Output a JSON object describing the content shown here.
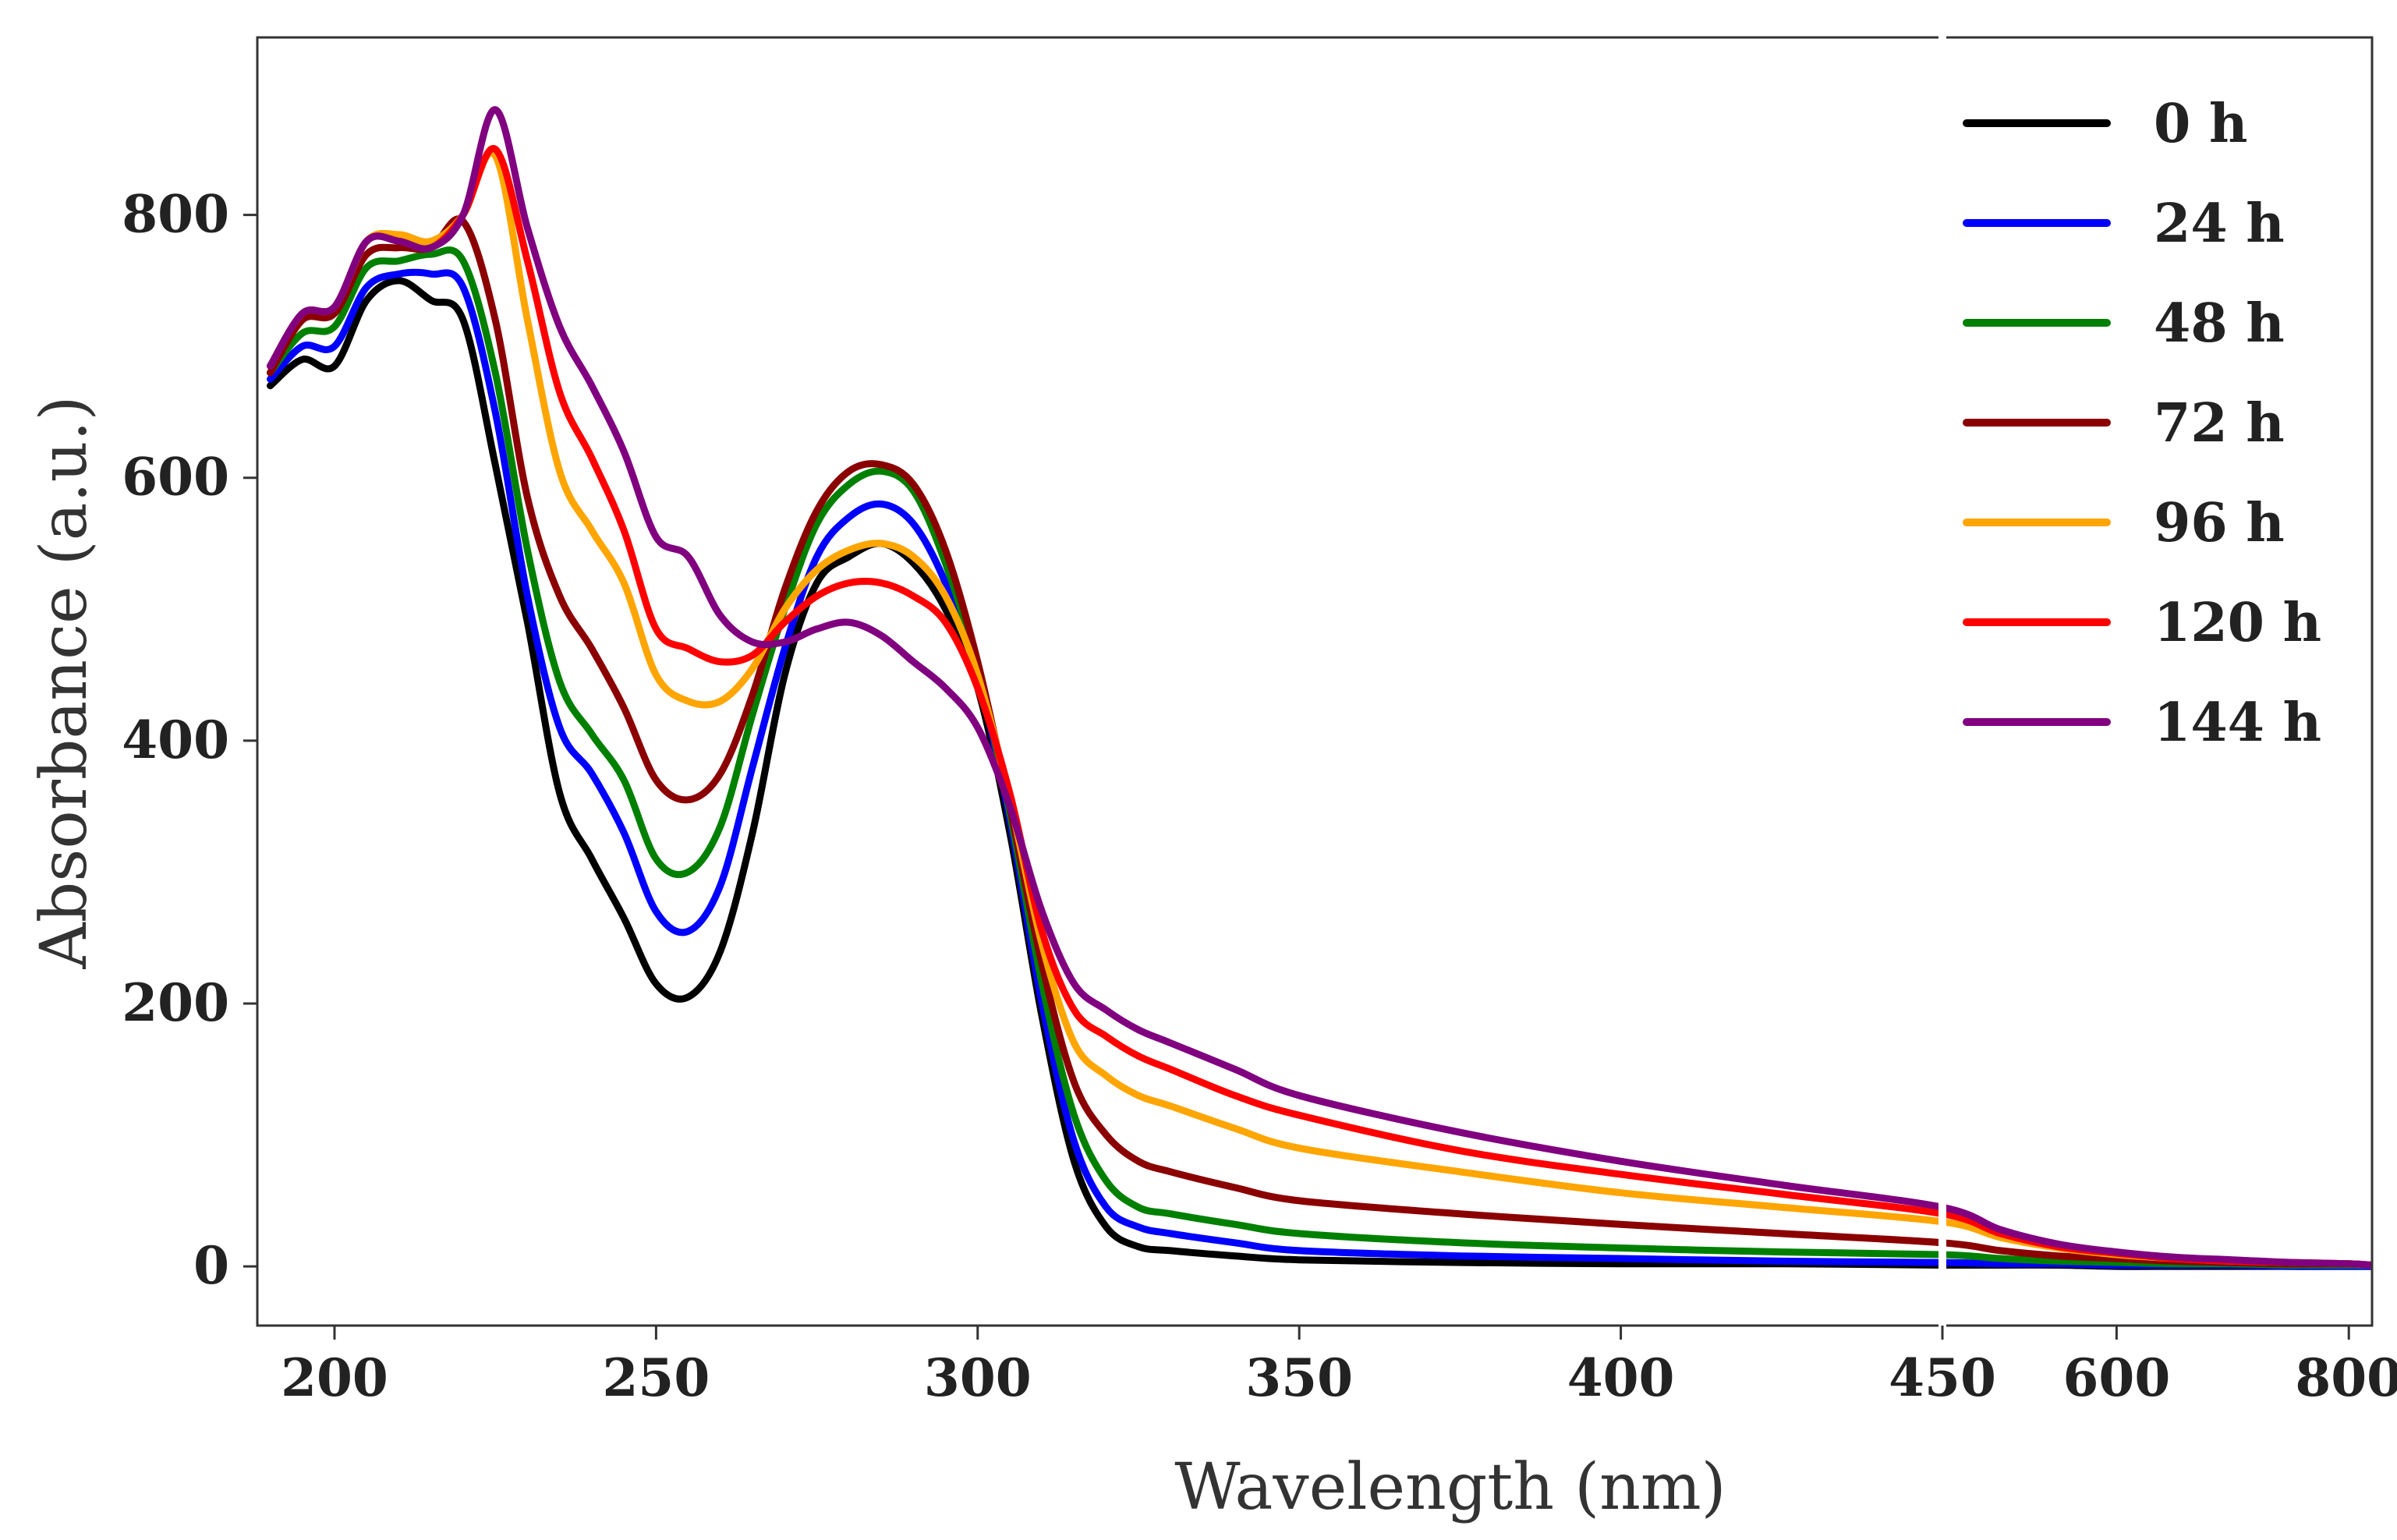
{
  "chart_data": {
    "type": "line",
    "title": "",
    "xlabel": "Wavelength (nm)",
    "ylabel": "Absorbance (a.u.)",
    "grid": false,
    "legend_position": "top-right",
    "broken_x_axis": true,
    "x_segments": [
      {
        "range": [
          188,
          450
        ],
        "ticks": [
          200,
          250,
          300,
          350,
          400,
          450
        ]
      },
      {
        "range": [
          450,
          820
        ],
        "ticks": [
          600,
          800
        ]
      }
    ],
    "ylim": [
      -45,
      935
    ],
    "yticks": [
      0,
      200,
      400,
      600,
      800
    ],
    "x": [
      190,
      195,
      200,
      205,
      210,
      215,
      220,
      225,
      230,
      235,
      240,
      245,
      250,
      255,
      260,
      265,
      270,
      275,
      280,
      285,
      290,
      295,
      300,
      305,
      310,
      315,
      320,
      325,
      330,
      340,
      350,
      375,
      400,
      425,
      450,
      500,
      550,
      600,
      650,
      700,
      750,
      800,
      820
    ],
    "series": [
      {
        "name": "0 h",
        "color": "#000000",
        "values": [
          670,
          690,
          685,
          735,
          750,
          735,
          720,
          610,
          490,
          360,
          310,
          265,
          215,
          205,
          240,
          330,
          450,
          520,
          540,
          550,
          535,
          500,
          440,
          330,
          190,
          80,
          30,
          15,
          12,
          8,
          5,
          3,
          2,
          2,
          1,
          1,
          1,
          0,
          0,
          0,
          0,
          0,
          0
        ]
      },
      {
        "name": "24 h",
        "color": "#0000ff",
        "values": [
          675,
          700,
          700,
          745,
          755,
          755,
          745,
          650,
          510,
          410,
          375,
          330,
          270,
          255,
          290,
          380,
          470,
          540,
          570,
          580,
          565,
          520,
          450,
          340,
          200,
          95,
          45,
          30,
          25,
          18,
          12,
          8,
          6,
          4,
          3,
          2,
          2,
          1,
          1,
          1,
          0,
          0,
          0
        ]
      },
      {
        "name": "48 h",
        "color": "#008000",
        "values": [
          680,
          710,
          715,
          760,
          765,
          770,
          765,
          680,
          545,
          445,
          405,
          370,
          310,
          300,
          335,
          420,
          500,
          565,
          595,
          605,
          590,
          535,
          455,
          345,
          215,
          115,
          65,
          45,
          40,
          32,
          25,
          18,
          14,
          11,
          9,
          6,
          4,
          3,
          2,
          2,
          1,
          1,
          1
        ]
      },
      {
        "name": "72 h",
        "color": "#8b0000",
        "values": [
          680,
          720,
          725,
          770,
          775,
          775,
          795,
          720,
          585,
          510,
          470,
          425,
          370,
          355,
          375,
          435,
          515,
          575,
          605,
          610,
          595,
          545,
          460,
          350,
          230,
          140,
          100,
          80,
          72,
          60,
          50,
          40,
          32,
          25,
          18,
          12,
          8,
          6,
          4,
          3,
          2,
          2,
          1
        ]
      },
      {
        "name": "96 h",
        "color": "#ffa500",
        "values": [
          685,
          725,
          730,
          780,
          785,
          780,
          800,
          845,
          720,
          605,
          560,
          520,
          450,
          430,
          430,
          455,
          500,
          530,
          545,
          550,
          540,
          510,
          450,
          355,
          245,
          170,
          145,
          130,
          122,
          105,
          90,
          72,
          56,
          45,
          34,
          22,
          14,
          9,
          6,
          4,
          3,
          2,
          1
        ]
      },
      {
        "name": "120 h",
        "color": "#ff0000",
        "values": [
          685,
          725,
          730,
          780,
          780,
          775,
          800,
          850,
          765,
          665,
          615,
          560,
          485,
          470,
          460,
          465,
          490,
          510,
          520,
          520,
          510,
          490,
          440,
          360,
          255,
          195,
          175,
          160,
          150,
          130,
          115,
          88,
          70,
          55,
          40,
          25,
          15,
          10,
          6,
          4,
          3,
          2,
          1
        ]
      },
      {
        "name": "144 h",
        "color": "#800080",
        "values": [
          685,
          725,
          730,
          780,
          780,
          775,
          800,
          880,
          790,
          715,
          670,
          620,
          555,
          540,
          495,
          475,
          475,
          485,
          490,
          480,
          460,
          440,
          410,
          350,
          270,
          215,
          195,
          180,
          170,
          150,
          130,
          102,
          80,
          62,
          45,
          28,
          17,
          11,
          7,
          5,
          3,
          2,
          1
        ]
      }
    ]
  }
}
